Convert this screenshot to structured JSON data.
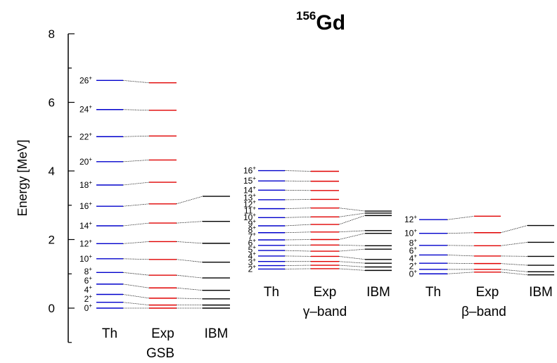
{
  "chart_data": {
    "type": "level-scheme",
    "title": {
      "sup": "156",
      "base": "Gd"
    },
    "ylabel": "Energy    [MeV]",
    "ylim": [
      -1,
      8
    ],
    "yticks": [
      "0",
      "2",
      "4",
      "6",
      "8"
    ],
    "column_labels": [
      "Th",
      "Exp",
      "IBM"
    ],
    "colors": {
      "Th": "#0000cc",
      "Exp": "#e00000",
      "IBM": "#000000",
      "link": "#000000"
    },
    "bands": [
      {
        "name": "GSB",
        "levels": [
          {
            "spin": "0",
            "parity": "+",
            "th": 0.0,
            "exp": 0.0,
            "ibm": 0.0
          },
          {
            "spin": "2",
            "parity": "+",
            "th": 0.17,
            "exp": 0.09,
            "ibm": 0.09
          },
          {
            "spin": "4",
            "parity": "+",
            "th": 0.4,
            "exp": 0.29,
            "ibm": 0.27
          },
          {
            "spin": "6",
            "parity": "+",
            "th": 0.7,
            "exp": 0.59,
            "ibm": 0.52
          },
          {
            "spin": "8",
            "parity": "+",
            "th": 1.04,
            "exp": 0.96,
            "ibm": 0.88
          },
          {
            "spin": "10",
            "parity": "+",
            "th": 1.44,
            "exp": 1.42,
            "ibm": 1.34
          },
          {
            "spin": "12",
            "parity": "+",
            "th": 1.88,
            "exp": 1.94,
            "ibm": 1.89
          },
          {
            "spin": "14",
            "parity": "+",
            "th": 2.4,
            "exp": 2.48,
            "ibm": 2.53
          },
          {
            "spin": "16",
            "parity": "+",
            "th": 2.97,
            "exp": 3.04,
            "ibm": 3.26
          },
          {
            "spin": "18",
            "parity": "+",
            "th": 3.59,
            "exp": 3.67
          },
          {
            "spin": "20",
            "parity": "+",
            "th": 4.27,
            "exp": 4.32
          },
          {
            "spin": "22",
            "parity": "+",
            "th": 5.0,
            "exp": 5.02
          },
          {
            "spin": "24",
            "parity": "+",
            "th": 5.79,
            "exp": 5.77
          },
          {
            "spin": "26",
            "parity": "+",
            "th": 6.64,
            "exp": 6.57
          }
        ]
      },
      {
        "name": "γ–band",
        "levels": [
          {
            "spin": "2",
            "parity": "+",
            "th": 1.14,
            "exp": 1.15,
            "ibm": 1.1
          },
          {
            "spin": "3",
            "parity": "+",
            "th": 1.24,
            "exp": 1.25,
            "ibm": 1.2
          },
          {
            "spin": "4",
            "parity": "+",
            "th": 1.36,
            "exp": 1.36,
            "ibm": 1.31
          },
          {
            "spin": "5",
            "parity": "+",
            "th": 1.52,
            "exp": 1.51,
            "ibm": 1.42
          },
          {
            "spin": "6",
            "parity": "+",
            "th": 1.68,
            "exp": 1.66,
            "ibm": 1.72
          },
          {
            "spin": "7",
            "parity": "+",
            "th": 1.83,
            "exp": 1.84,
            "ibm": 1.82
          },
          {
            "spin": "8",
            "parity": "+",
            "th": 1.99,
            "exp": 2.0,
            "ibm": 2.18
          },
          {
            "spin": "9",
            "parity": "+",
            "th": 2.2,
            "exp": 2.22,
            "ibm": 2.26
          },
          {
            "spin": "10",
            "parity": "+",
            "th": 2.4,
            "exp": 2.44,
            "ibm": 2.7
          },
          {
            "spin": "11",
            "parity": "+",
            "th": 2.64,
            "exp": 2.66,
            "ibm": 2.77
          },
          {
            "spin": "12",
            "parity": "+",
            "th": 2.9,
            "exp": 2.92,
            "ibm": 2.83
          },
          {
            "spin": "13",
            "parity": "+",
            "th": 3.16,
            "exp": 3.17
          },
          {
            "spin": "14",
            "parity": "+",
            "th": 3.44,
            "exp": 3.43
          },
          {
            "spin": "15",
            "parity": "+",
            "th": 3.71,
            "exp": 3.7
          },
          {
            "spin": "16",
            "parity": "+",
            "th": 4.01,
            "exp": 3.99
          }
        ]
      },
      {
        "name": "β–band",
        "levels": [
          {
            "spin": "0",
            "parity": "+",
            "th": 1.0,
            "exp": 1.05,
            "ibm": 0.97
          },
          {
            "spin": "2",
            "parity": "+",
            "th": 1.13,
            "exp": 1.13,
            "ibm": 1.06
          },
          {
            "spin": "4",
            "parity": "+",
            "th": 1.31,
            "exp": 1.3,
            "ibm": 1.25
          },
          {
            "spin": "6",
            "parity": "+",
            "th": 1.55,
            "exp": 1.52,
            "ibm": 1.51
          },
          {
            "spin": "8",
            "parity": "+",
            "th": 1.83,
            "exp": 1.82,
            "ibm": 1.92
          },
          {
            "spin": "10",
            "parity": "+",
            "th": 2.18,
            "exp": 2.2,
            "ibm": 2.41
          },
          {
            "spin": "12",
            "parity": "+",
            "th": 2.58,
            "exp": 2.68
          }
        ]
      }
    ]
  }
}
